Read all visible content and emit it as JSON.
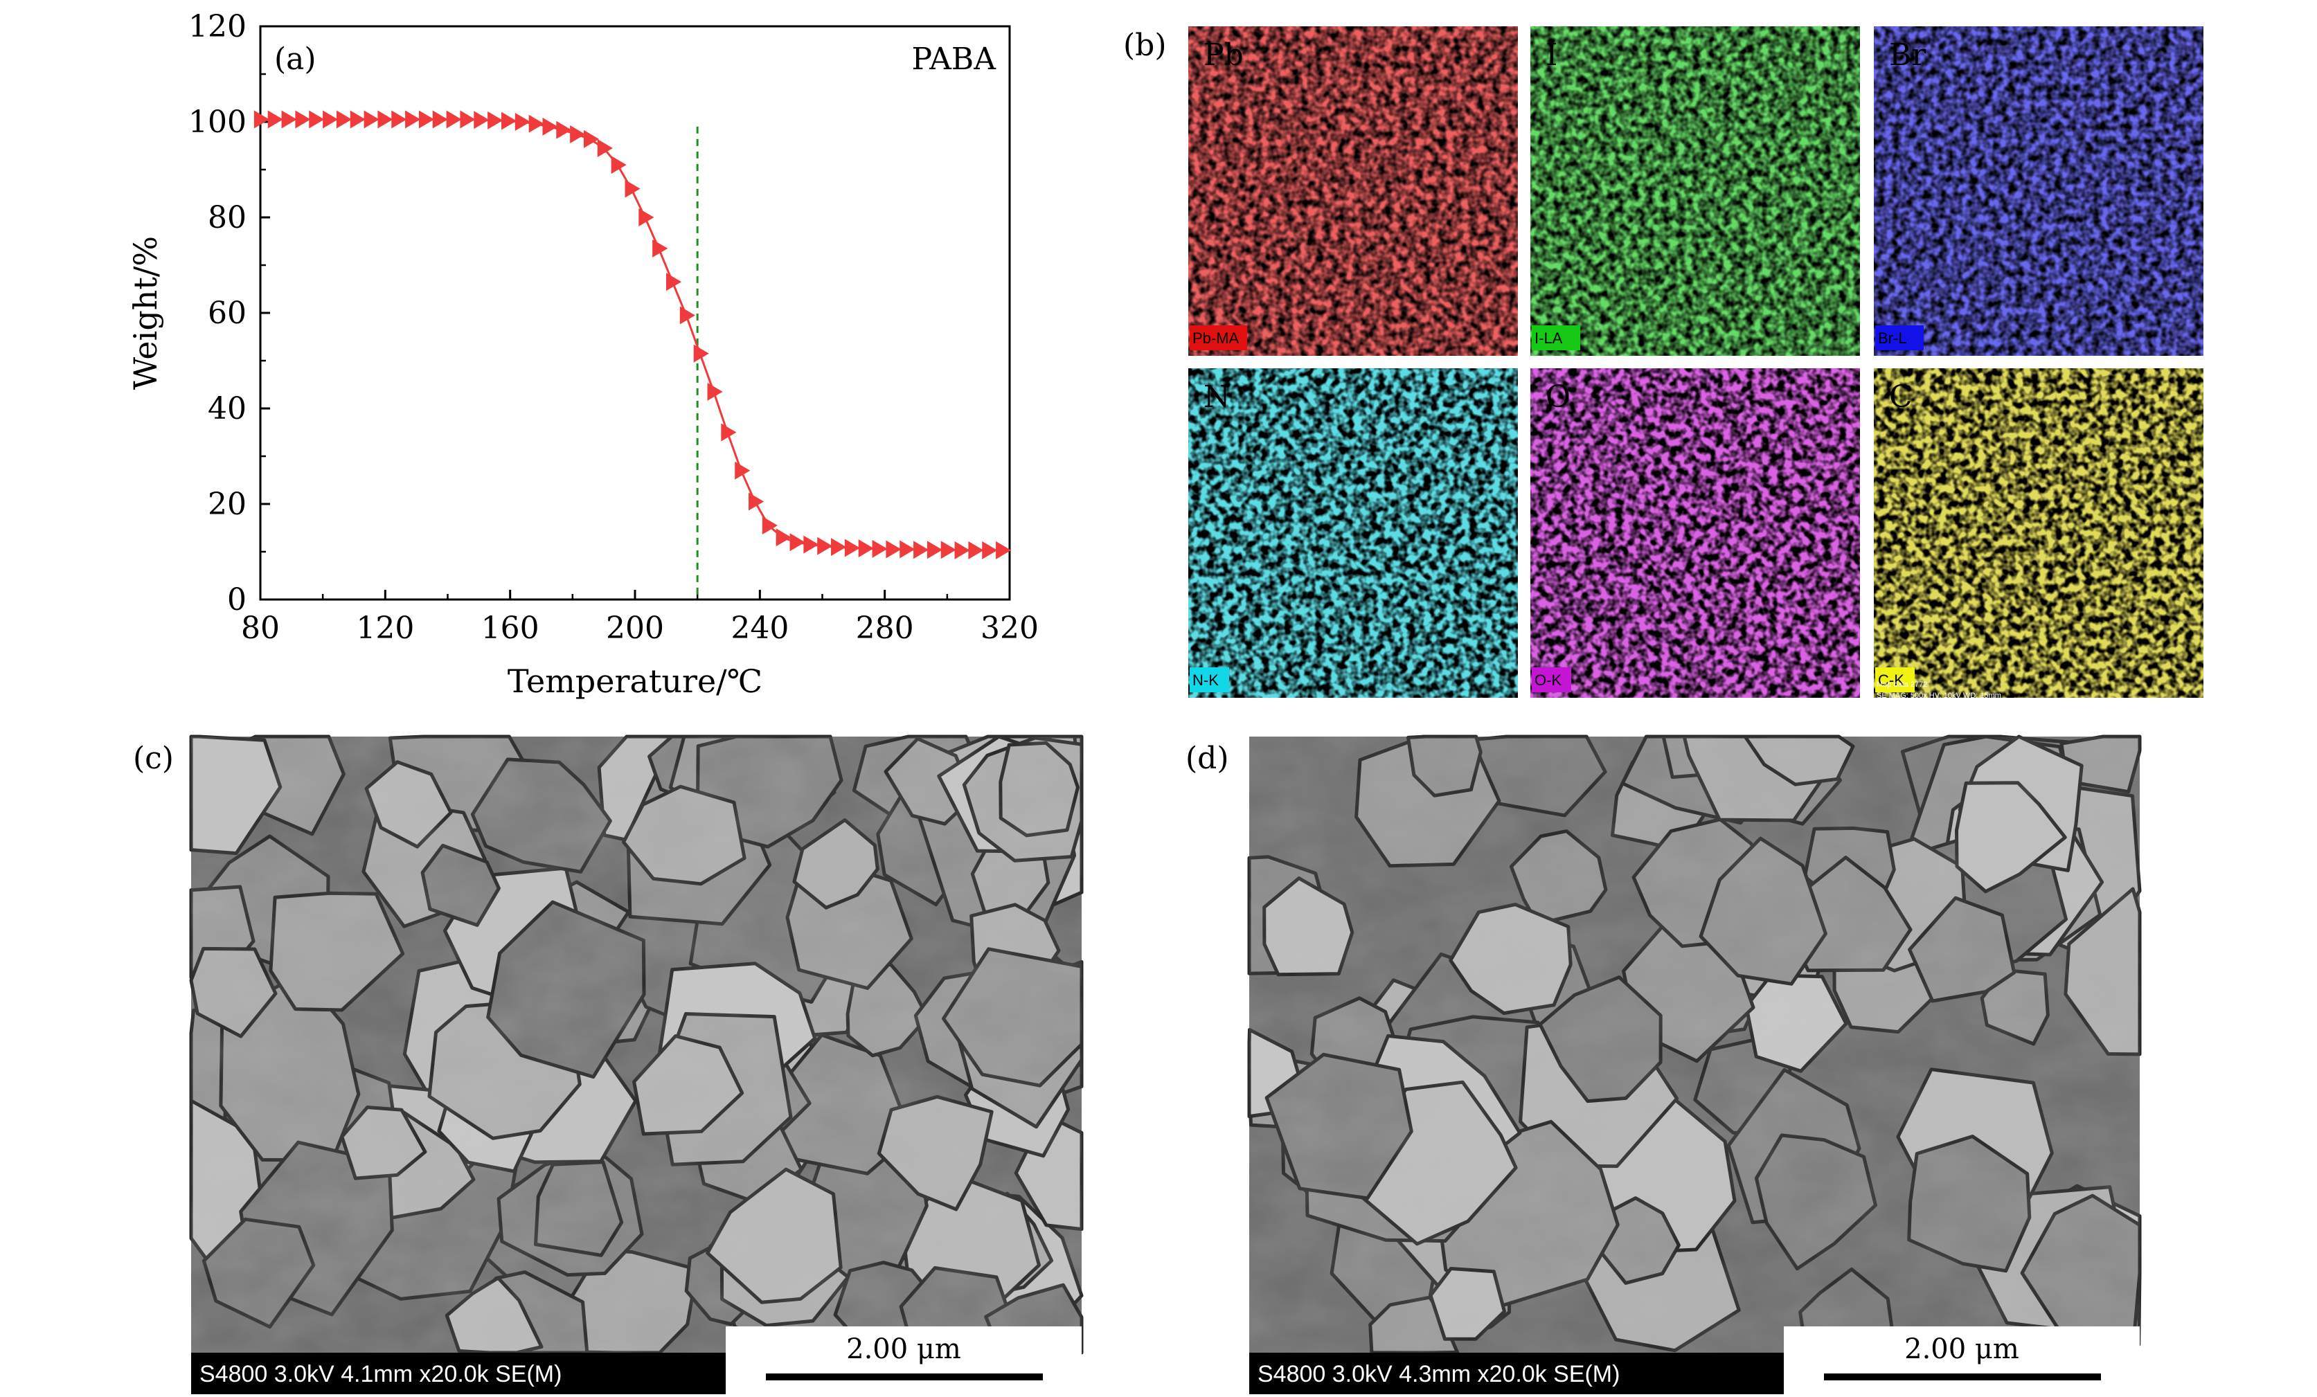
{
  "panel_labels": {
    "a": "(a)",
    "b": "(b)",
    "c": "(c)",
    "d": "(d)"
  },
  "chart_data": {
    "type": "line",
    "title": "PABA",
    "xlabel": "Temperature/℃",
    "ylabel": "Weight/%",
    "xlim": [
      80,
      320
    ],
    "ylim": [
      0,
      120
    ],
    "xticks": [
      80,
      120,
      160,
      200,
      240,
      280,
      320
    ],
    "yticks": [
      0,
      20,
      40,
      60,
      80,
      100,
      120
    ],
    "reference_line_x": 220,
    "grid": false,
    "series": [
      {
        "color": "#ef3b3b",
        "marker": "right-triangle",
        "x": [
          80,
          84.4,
          88.8,
          93.2,
          97.6,
          102,
          106.4,
          110.8,
          115.2,
          119.6,
          124,
          128.4,
          132.8,
          137.2,
          141.6,
          146,
          150.4,
          154.8,
          159.2,
          163.6,
          168,
          172.4,
          176.8,
          181.2,
          185.6,
          190,
          194.4,
          198.8,
          203.2,
          207.6,
          212,
          216.4,
          220.8,
          225.2,
          229.6,
          234,
          238.4,
          242.8,
          247.2,
          251.6,
          256,
          260.4,
          264.8,
          269.2,
          273.6,
          278,
          282.4,
          286.8,
          291.2,
          295.6,
          300,
          304.4,
          308.8,
          313.2,
          317.6
        ],
        "y": [
          100.5,
          100.5,
          100.5,
          100.5,
          100.5,
          100.5,
          100.5,
          100.5,
          100.5,
          100.5,
          100.5,
          100.5,
          100.5,
          100.5,
          100.5,
          100.5,
          100.4,
          100.3,
          100.2,
          100,
          99.6,
          99.0,
          98.3,
          97.4,
          96.4,
          94.5,
          91.0,
          86.0,
          80.0,
          73.5,
          66.5,
          59.5,
          51.5,
          43.5,
          35.0,
          27.0,
          20.5,
          15.5,
          13.0,
          12.0,
          11.5,
          11.2,
          11.0,
          10.8,
          10.7,
          10.6,
          10.5,
          10.5,
          10.4,
          10.4,
          10.4,
          10.3,
          10.3,
          10.3,
          10.3
        ]
      }
    ]
  },
  "eds_maps": [
    {
      "element": "Pb",
      "tag": "Pb-MA",
      "color": "#d81e1e",
      "tag_color": "#e01010"
    },
    {
      "element": "I",
      "tag": "I-LA",
      "color": "#22b322",
      "tag_color": "#16c916"
    },
    {
      "element": "Br",
      "tag": "Br-L",
      "color": "#2323d8",
      "tag_color": "#1212e8"
    },
    {
      "element": "N",
      "tag": "N-K",
      "color": "#1cb4c4",
      "tag_color": "#10d8e8"
    },
    {
      "element": "O",
      "tag": "O-K",
      "color": "#b11fc2",
      "tag_color": "#c414d4"
    },
    {
      "element": "C",
      "tag": "C-K",
      "color": "#bdb21a",
      "tag_color": "#f2f210",
      "extra_lines": [
        "Map data 2772",
        "SE MAG: 500x  HV: 10kV  WD: 15mm"
      ]
    }
  ],
  "sem_images": [
    {
      "id": "c",
      "info": "S4800 3.0kV 4.1mm x20.0k SE(M)",
      "scale": "2.00 μm"
    },
    {
      "id": "d",
      "info": "S4800 3.0kV 4.3mm x20.0k SE(M)",
      "scale": "2.00 μm"
    }
  ]
}
